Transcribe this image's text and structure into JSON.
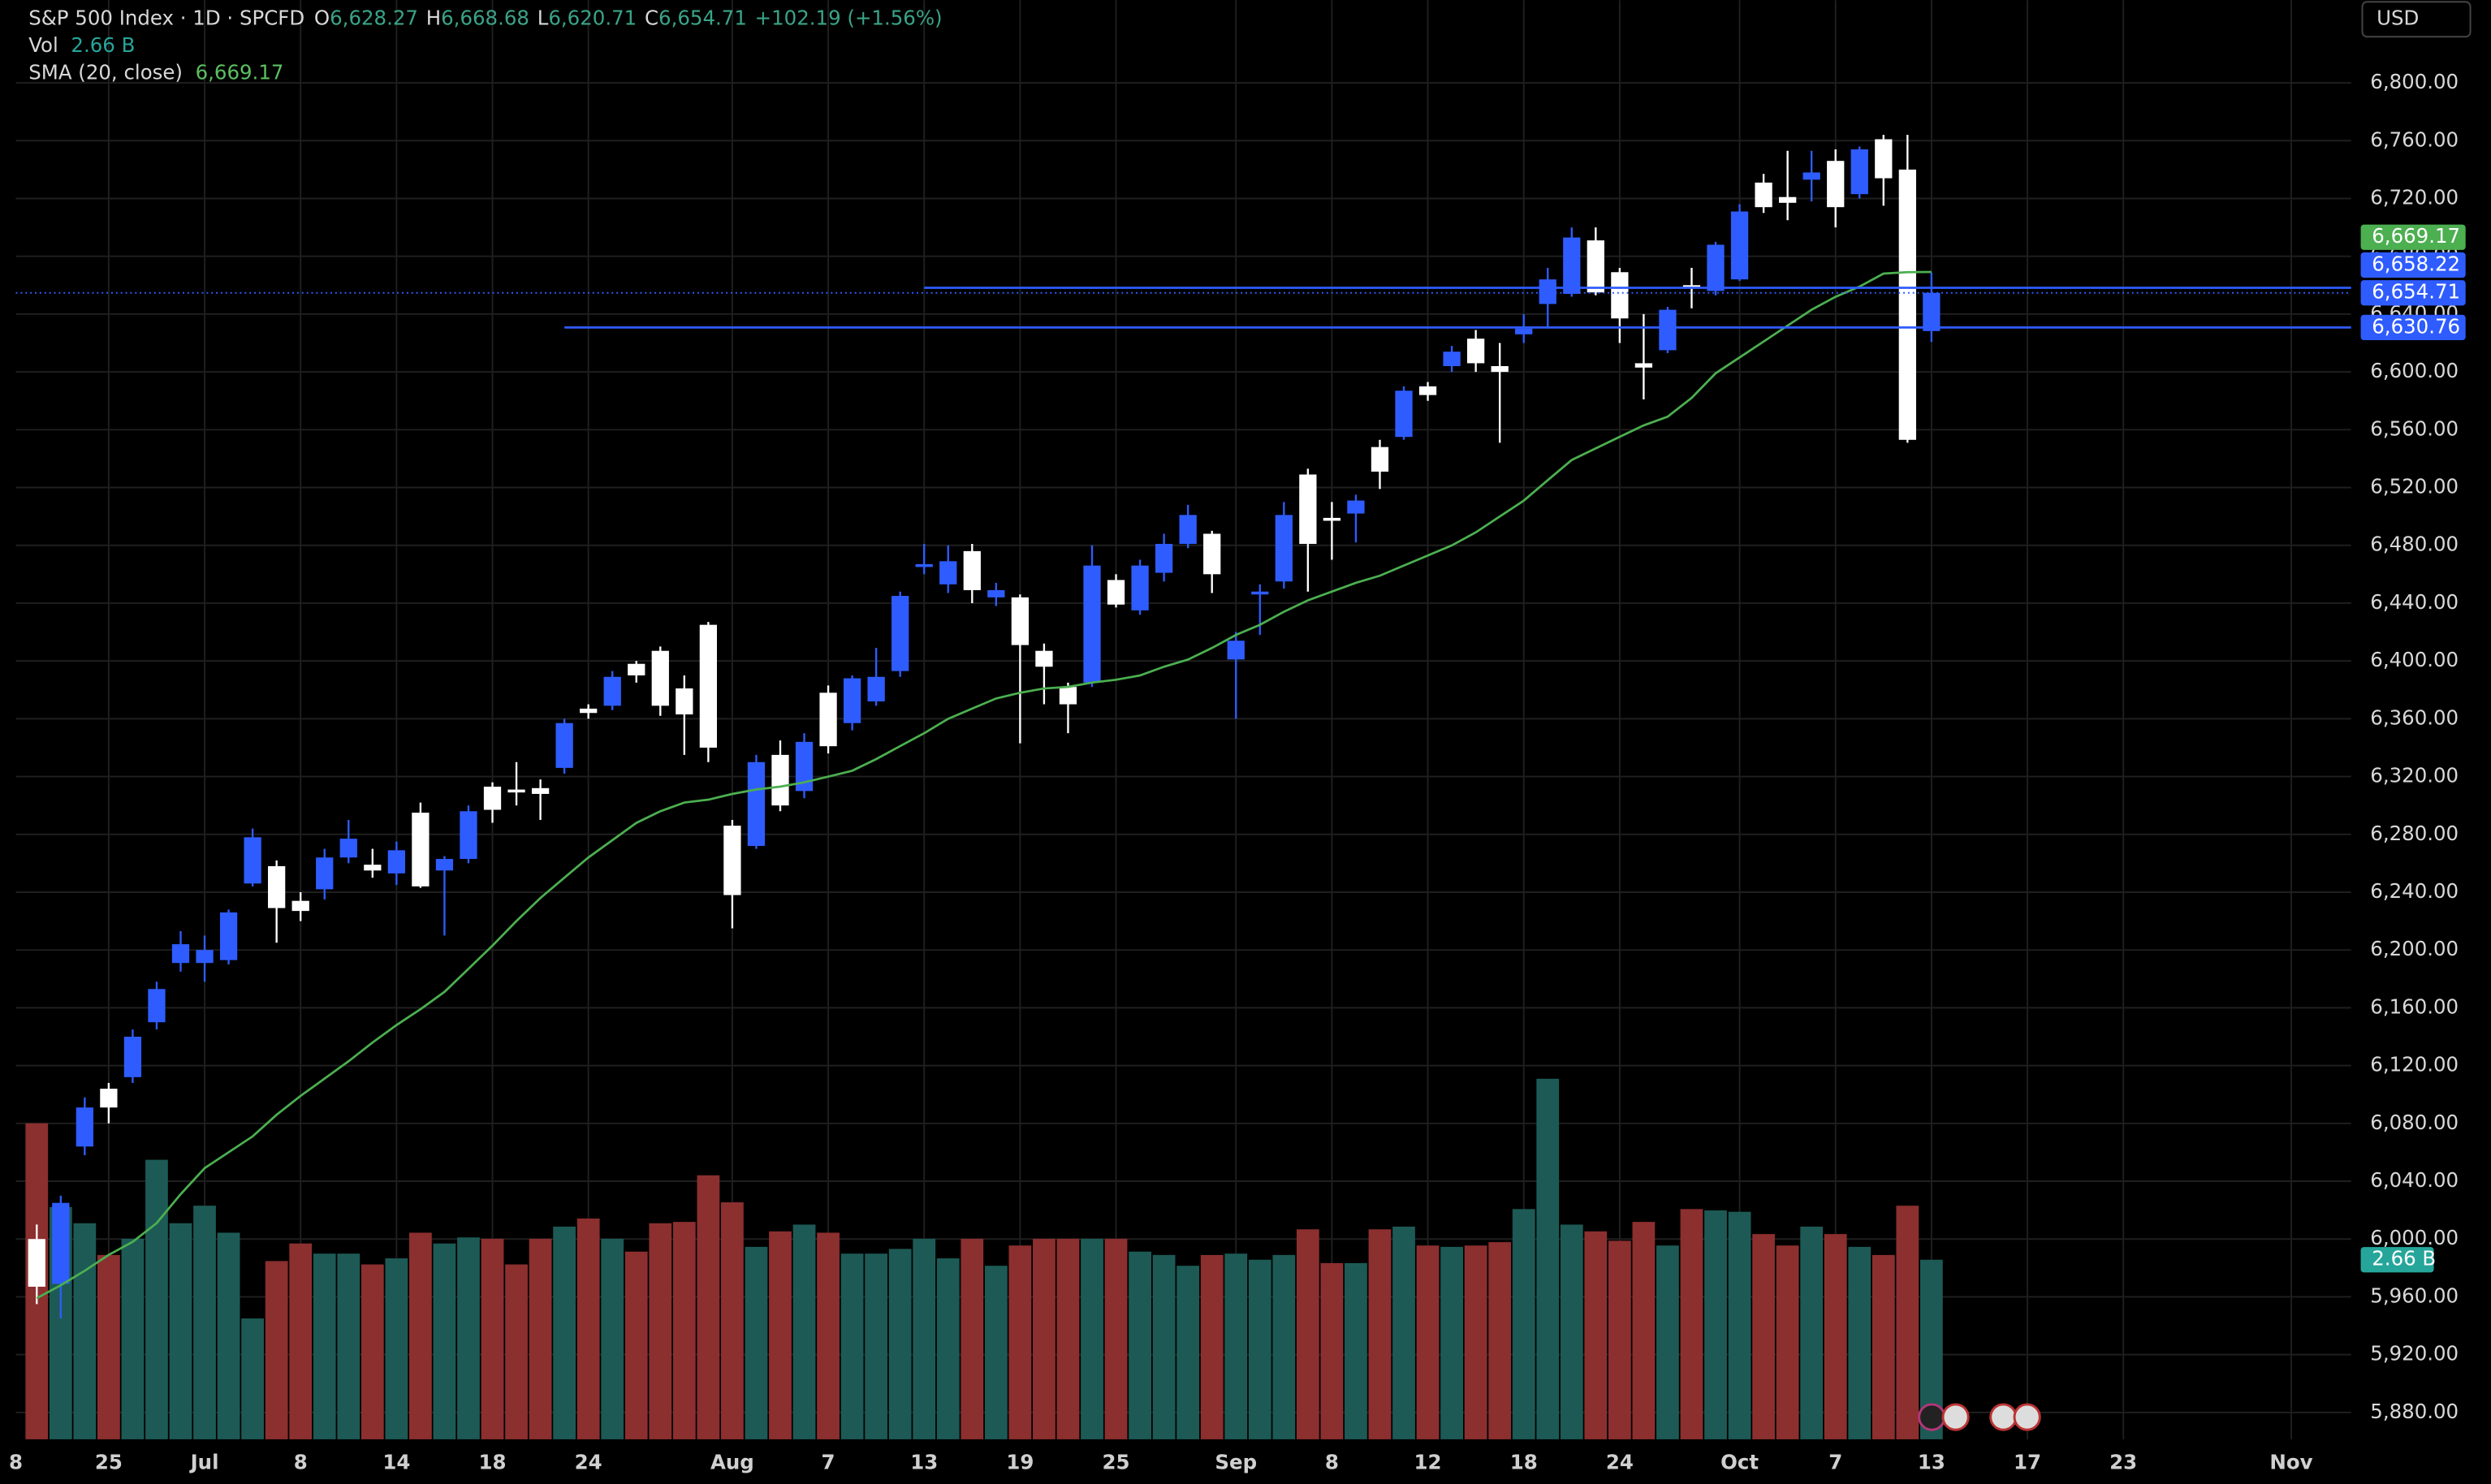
{
  "chart_data": {
    "type": "candlestick",
    "title": "S&P 500 Index · 1D · SPCFD",
    "ohlc_legend": [
      {
        "key": "O",
        "label": "6,628.27"
      },
      {
        "key": "H",
        "label": "6,668.68"
      },
      {
        "key": "L",
        "label": "6,620.71"
      },
      {
        "key": "C",
        "label": "6,654.71"
      }
    ],
    "change_label": "+102.19 (+1.56%)",
    "currency": "USD",
    "xlim": [
      -0.87,
      96.5
    ],
    "xticks": [
      {
        "value": -1,
        "label": "8"
      },
      {
        "value": 3,
        "label": "25"
      },
      {
        "value": 7,
        "label": "Jul"
      },
      {
        "value": 11,
        "label": "8"
      },
      {
        "value": 15,
        "label": "14"
      },
      {
        "value": 19,
        "label": "18"
      },
      {
        "value": 23,
        "label": "24"
      },
      {
        "value": 29,
        "label": "Aug"
      },
      {
        "value": 33,
        "label": "7"
      },
      {
        "value": 37,
        "label": "13"
      },
      {
        "value": 41,
        "label": "19"
      },
      {
        "value": 45,
        "label": "25"
      },
      {
        "value": 50,
        "label": "Sep"
      },
      {
        "value": 54,
        "label": "8"
      },
      {
        "value": 58,
        "label": "12"
      },
      {
        "value": 62,
        "label": "18"
      },
      {
        "value": 66,
        "label": "24"
      },
      {
        "value": 71,
        "label": "Oct"
      },
      {
        "value": 75,
        "label": "7"
      },
      {
        "value": 79,
        "label": "13"
      },
      {
        "value": 83,
        "label": "17"
      },
      {
        "value": 87,
        "label": "23"
      },
      {
        "value": 94,
        "label": "Nov"
      }
    ],
    "ylim": [
      5861.4,
      6857.2
    ],
    "yticks": [
      {
        "value": 5880,
        "label": "5,880.00"
      },
      {
        "value": 5920,
        "label": "5,920.00"
      },
      {
        "value": 5960,
        "label": "5,960.00"
      },
      {
        "value": 6000,
        "label": "6,000.00"
      },
      {
        "value": 6040,
        "label": "6,040.00"
      },
      {
        "value": 6080,
        "label": "6,080.00"
      },
      {
        "value": 6120,
        "label": "6,120.00"
      },
      {
        "value": 6160,
        "label": "6,160.00"
      },
      {
        "value": 6200,
        "label": "6,200.00"
      },
      {
        "value": 6240,
        "label": "6,240.00"
      },
      {
        "value": 6280,
        "label": "6,280.00"
      },
      {
        "value": 6320,
        "label": "6,320.00"
      },
      {
        "value": 6360,
        "label": "6,360.00"
      },
      {
        "value": 6400,
        "label": "6,400.00"
      },
      {
        "value": 6440,
        "label": "6,440.00"
      },
      {
        "value": 6480,
        "label": "6,480.00"
      },
      {
        "value": 6520,
        "label": "6,520.00"
      },
      {
        "value": 6560,
        "label": "6,560.00"
      },
      {
        "value": 6600,
        "label": "6,600.00"
      },
      {
        "value": 6640,
        "label": "6,640.00"
      },
      {
        "value": 6680,
        "label": "6,680.00"
      },
      {
        "value": 6720,
        "label": "6,720.00"
      },
      {
        "value": 6760,
        "label": "6,760.00"
      },
      {
        "value": 6800,
        "label": "6,800.00"
      }
    ],
    "grid": true,
    "up_color": "#2f5cff",
    "down_color": "#ffffff",
    "open": [
      6000,
      5969,
      6064,
      6104,
      6112,
      6150,
      6191,
      6191,
      6193,
      6246,
      6258,
      6234,
      6242,
      6264,
      6259,
      6253,
      6295,
      6255,
      6263,
      6313,
      6311,
      6312,
      6326,
      6367,
      6369,
      6398,
      6407,
      6381,
      6425,
      6286,
      6272,
      6335,
      6310,
      6378,
      6357,
      6372,
      6393,
      6465,
      6453,
      6476,
      6444,
      6444,
      6407,
      6382,
      6385,
      6456,
      6435,
      6461,
      6481,
      6488,
      6401,
      6446,
      6455,
      6529,
      6499,
      6502,
      6548,
      6555,
      6590,
      6604,
      6623,
      6604,
      6626,
      6647,
      6654,
      6691,
      6669,
      6606,
      6615,
      6660,
      6656,
      6664,
      6731,
      6721,
      6733,
      6746,
      6723,
      6761,
      6740,
      6628.27
    ],
    "high": [
      6010,
      6030,
      6098,
      6108,
      6145,
      6178,
      6213,
      6210,
      6228,
      6284,
      6262,
      6240,
      6270,
      6290,
      6270,
      6275,
      6302,
      6265,
      6300,
      6316,
      6330,
      6318,
      6360,
      6370,
      6393,
      6400,
      6410,
      6390,
      6427,
      6290,
      6335,
      6345,
      6350,
      6383,
      6390,
      6409,
      6448,
      6481,
      6480,
      6481,
      6454,
      6446,
      6412,
      6385,
      6480,
      6460,
      6470,
      6488,
      6508,
      6490,
      6420,
      6453,
      6510,
      6533,
      6510,
      6515,
      6553,
      6590,
      6593,
      6618,
      6629,
      6620,
      6640,
      6672,
      6700,
      6700,
      6672,
      6640,
      6645,
      6672,
      6690,
      6716,
      6737,
      6753,
      6753,
      6754,
      6756,
      6764,
      6764,
      6668.68
    ],
    "low": [
      5955,
      5945,
      6058,
      6080,
      6108,
      6145,
      6185,
      6178,
      6190,
      6244,
      6205,
      6220,
      6235,
      6260,
      6250,
      6245,
      6243,
      6210,
      6260,
      6288,
      6300,
      6290,
      6322,
      6360,
      6366,
      6385,
      6362,
      6335,
      6330,
      6215,
      6270,
      6296,
      6305,
      6336,
      6352,
      6369,
      6389,
      6460,
      6447,
      6440,
      6438,
      6343,
      6370,
      6350,
      6382,
      6437,
      6432,
      6455,
      6478,
      6447,
      6360,
      6418,
      6450,
      6448,
      6470,
      6482,
      6519,
      6553,
      6580,
      6600,
      6600,
      6551,
      6620,
      6630,
      6652,
      6653,
      6620,
      6581,
      6613,
      6644,
      6653,
      6663,
      6710,
      6705,
      6718,
      6700,
      6720,
      6715,
      6551,
      6620.71
    ],
    "close": [
      5967,
      6025,
      6091,
      6091,
      6140,
      6173,
      6204,
      6200,
      6226,
      6278,
      6229,
      6227,
      6264,
      6277,
      6255,
      6269,
      6244,
      6263,
      6296,
      6297,
      6309,
      6308,
      6357,
      6364,
      6389,
      6390,
      6369,
      6363,
      6340,
      6238,
      6330,
      6300,
      6344,
      6341,
      6388,
      6389,
      6445,
      6467,
      6469,
      6449,
      6449,
      6411,
      6396,
      6370,
      6466,
      6439,
      6466,
      6481,
      6501,
      6460,
      6414,
      6448,
      6501,
      6481,
      6497,
      6511,
      6531,
      6587,
      6584,
      6614,
      6606,
      6600,
      6630,
      6664,
      6693,
      6655,
      6637,
      6603,
      6643,
      6658,
      6688,
      6711,
      6714,
      6717,
      6738,
      6714,
      6754,
      6734,
      6553,
      6654.71
    ],
    "volume": {
      "name": "Vol",
      "last_label": "2.66 B",
      "up_color": "#1d5a55",
      "down_color": "#8c2f2f",
      "values": [
        4.68,
        3.44,
        3.2,
        2.73,
        2.97,
        4.14,
        3.2,
        3.46,
        3.06,
        1.79,
        2.64,
        2.9,
        2.75,
        2.75,
        2.59,
        2.68,
        3.06,
        2.9,
        2.99,
        2.97,
        2.59,
        2.97,
        3.15,
        3.27,
        2.97,
        2.78,
        3.2,
        3.22,
        3.91,
        3.51,
        2.85,
        3.08,
        3.18,
        3.06,
        2.75,
        2.75,
        2.82,
        2.97,
        2.68,
        2.97,
        2.57,
        2.87,
        2.97,
        2.97,
        2.97,
        2.97,
        2.78,
        2.73,
        2.57,
        2.73,
        2.75,
        2.66,
        2.73,
        3.11,
        2.61,
        2.61,
        3.11,
        3.15,
        2.87,
        2.85,
        2.87,
        2.92,
        3.41,
        5.34,
        3.18,
        3.08,
        2.94,
        3.22,
        2.87,
        3.41,
        3.39,
        3.37,
        3.04,
        2.87,
        3.15,
        3.04,
        2.85,
        2.73,
        3.46,
        2.66
      ]
    },
    "sma": {
      "name": "SMA (20, close)",
      "last_label": "6,669.17",
      "color": "#4caf50",
      "values": [
        5959,
        5968,
        5978,
        5989,
        5998,
        6011,
        6031,
        6049,
        6060,
        6071,
        6086,
        6099,
        6111,
        6123,
        6136,
        6148,
        6159,
        6171,
        6187,
        6203,
        6220,
        6236,
        6250,
        6264,
        6276,
        6288,
        6296,
        6302,
        6304,
        6308,
        6311,
        6313,
        6316,
        6320,
        6324,
        6332,
        6341,
        6350,
        6360,
        6367,
        6374,
        6378,
        6381,
        6382,
        6385,
        6387,
        6390,
        6396,
        6401,
        6409,
        6418,
        6425,
        6434,
        6442,
        6448,
        6454,
        6459,
        6466,
        6473,
        6480,
        6489,
        6500,
        6511,
        6525,
        6539,
        6547,
        6555,
        6563,
        6569,
        6582,
        6599,
        6610,
        6621,
        6632,
        6643,
        6652,
        6659,
        6668,
        6669,
        6669.17
      ]
    },
    "price_lines": {
      "color": "#2f5cff",
      "lines": [
        {
          "value": 6658.22,
          "label": "6,658.22",
          "x": 37
        },
        {
          "value": 6630.76,
          "label": "6,630.76",
          "x": 22
        }
      ]
    }
  }
}
